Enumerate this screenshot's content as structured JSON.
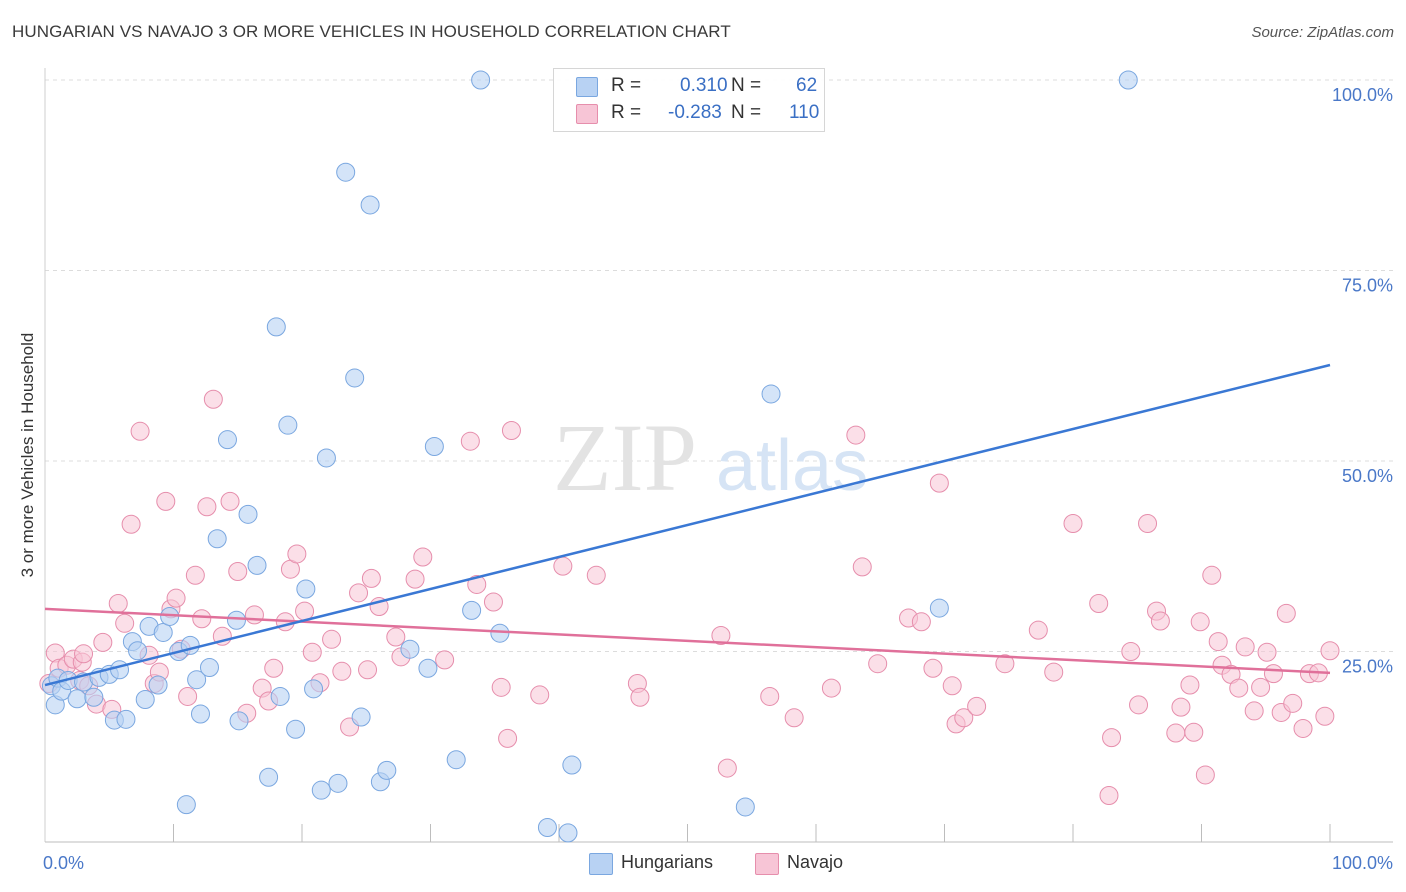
{
  "header": {
    "title": "HUNGARIAN VS NAVAJO 3 OR MORE VEHICLES IN HOUSEHOLD CORRELATION CHART",
    "source": "Source: ZipAtlas.com"
  },
  "watermark": {
    "zip": "ZIP",
    "atlas": "atlas"
  },
  "colors": {
    "blue_fill": "#b8d2f3",
    "blue_stroke": "#7aa7e0",
    "blue_line": "#3a78d4",
    "pink_fill": "#f7c5d6",
    "pink_stroke": "#e68eac",
    "pink_line": "#e0709a",
    "axis_text": "#4a78c8",
    "grid": "#dcdcdc"
  },
  "stats": {
    "hungarians": {
      "r_label": "R =",
      "r_value": "0.310",
      "n_label": "N =",
      "n_value": "62"
    },
    "navajo": {
      "r_label": "R =",
      "r_value": "-0.283",
      "n_label": "N =",
      "n_value": "110"
    }
  },
  "legend": {
    "hungarians": "Hungarians",
    "navajo": "Navajo"
  },
  "chart_data": {
    "type": "scatter",
    "title": "HUNGARIAN VS NAVAJO 3 OR MORE VEHICLES IN HOUSEHOLD CORRELATION CHART",
    "xlabel": "",
    "ylabel": "3 or more Vehicles in Household",
    "xlim": [
      0,
      100
    ],
    "ylim": [
      0,
      100
    ],
    "x_tick_labels": [
      "0.0%",
      "100.0%"
    ],
    "y_ticks": [
      25,
      50,
      75,
      100
    ],
    "y_tick_labels": [
      "25.0%",
      "50.0%",
      "75.0%",
      "100.0%"
    ],
    "legend_position": "bottom",
    "series": [
      {
        "name": "Hungarians",
        "r": 0.31,
        "n": 62,
        "trend": {
          "x": [
            0,
            100
          ],
          "y": [
            20.6,
            62.6
          ]
        },
        "points": [
          [
            0.5,
            20.5
          ],
          [
            0.8,
            18.0
          ],
          [
            1.0,
            21.5
          ],
          [
            1.3,
            19.8
          ],
          [
            1.8,
            21.2
          ],
          [
            2.5,
            18.8
          ],
          [
            3.0,
            21.0
          ],
          [
            3.8,
            19.0
          ],
          [
            4.2,
            21.6
          ],
          [
            5.0,
            22.0
          ],
          [
            5.4,
            16.0
          ],
          [
            5.8,
            22.6
          ],
          [
            6.3,
            16.1
          ],
          [
            6.8,
            26.3
          ],
          [
            7.2,
            25.1
          ],
          [
            7.8,
            18.7
          ],
          [
            8.1,
            28.3
          ],
          [
            8.8,
            20.6
          ],
          [
            9.2,
            27.5
          ],
          [
            9.7,
            29.6
          ],
          [
            10.4,
            25.0
          ],
          [
            11.0,
            4.9
          ],
          [
            11.3,
            25.8
          ],
          [
            11.8,
            21.3
          ],
          [
            12.1,
            16.8
          ],
          [
            12.8,
            22.9
          ],
          [
            13.4,
            39.8
          ],
          [
            14.2,
            52.8
          ],
          [
            14.9,
            29.1
          ],
          [
            15.1,
            15.9
          ],
          [
            15.8,
            43.0
          ],
          [
            16.5,
            36.3
          ],
          [
            17.4,
            8.5
          ],
          [
            18.0,
            67.6
          ],
          [
            18.3,
            19.1
          ],
          [
            18.9,
            54.7
          ],
          [
            19.5,
            14.8
          ],
          [
            20.3,
            33.2
          ],
          [
            20.9,
            20.1
          ],
          [
            21.5,
            6.8
          ],
          [
            21.9,
            50.4
          ],
          [
            22.8,
            7.7
          ],
          [
            23.4,
            87.9
          ],
          [
            24.1,
            60.9
          ],
          [
            24.6,
            16.4
          ],
          [
            25.3,
            83.6
          ],
          [
            26.1,
            7.9
          ],
          [
            26.6,
            9.4
          ],
          [
            28.4,
            25.3
          ],
          [
            29.8,
            22.8
          ],
          [
            30.3,
            51.9
          ],
          [
            32.0,
            10.8
          ],
          [
            33.2,
            30.4
          ],
          [
            33.9,
            100.0
          ],
          [
            35.4,
            27.4
          ],
          [
            39.1,
            1.9
          ],
          [
            40.7,
            1.2
          ],
          [
            41.0,
            10.1
          ],
          [
            54.5,
            4.6
          ],
          [
            56.5,
            58.8
          ],
          [
            69.6,
            30.7
          ],
          [
            84.3,
            100.0
          ]
        ]
      },
      {
        "name": "Navajo",
        "r": -0.283,
        "n": 110,
        "trend": {
          "x": [
            0,
            100
          ],
          "y": [
            30.6,
            22.2
          ]
        },
        "points": [
          [
            0.3,
            20.8
          ],
          [
            0.8,
            24.8
          ],
          [
            1.1,
            22.8
          ],
          [
            1.7,
            23.2
          ],
          [
            2.2,
            24.0
          ],
          [
            2.7,
            21.2
          ],
          [
            2.9,
            23.6
          ],
          [
            3.0,
            24.7
          ],
          [
            3.4,
            20.5
          ],
          [
            4.0,
            18.1
          ],
          [
            4.5,
            26.2
          ],
          [
            5.2,
            17.4
          ],
          [
            5.7,
            31.3
          ],
          [
            6.2,
            28.7
          ],
          [
            6.7,
            41.7
          ],
          [
            7.4,
            53.9
          ],
          [
            8.1,
            24.5
          ],
          [
            8.5,
            20.8
          ],
          [
            8.9,
            22.3
          ],
          [
            9.4,
            44.7
          ],
          [
            9.8,
            30.6
          ],
          [
            10.2,
            32.0
          ],
          [
            10.6,
            25.3
          ],
          [
            11.1,
            19.1
          ],
          [
            11.7,
            35.0
          ],
          [
            12.2,
            29.3
          ],
          [
            12.6,
            44.0
          ],
          [
            13.1,
            58.1
          ],
          [
            13.8,
            27.0
          ],
          [
            14.4,
            44.7
          ],
          [
            15.0,
            35.5
          ],
          [
            15.7,
            16.9
          ],
          [
            16.3,
            29.8
          ],
          [
            16.9,
            20.2
          ],
          [
            17.4,
            18.5
          ],
          [
            17.8,
            22.8
          ],
          [
            18.7,
            28.9
          ],
          [
            19.1,
            35.8
          ],
          [
            19.6,
            37.8
          ],
          [
            20.2,
            30.3
          ],
          [
            20.8,
            24.9
          ],
          [
            21.4,
            20.9
          ],
          [
            22.3,
            26.6
          ],
          [
            23.1,
            22.4
          ],
          [
            23.7,
            15.1
          ],
          [
            24.4,
            32.7
          ],
          [
            25.1,
            22.6
          ],
          [
            25.4,
            34.6
          ],
          [
            26.0,
            30.9
          ],
          [
            27.3,
            26.9
          ],
          [
            27.7,
            24.3
          ],
          [
            28.8,
            34.5
          ],
          [
            29.4,
            37.4
          ],
          [
            31.1,
            23.9
          ],
          [
            33.1,
            52.6
          ],
          [
            33.6,
            33.8
          ],
          [
            34.9,
            31.5
          ],
          [
            35.5,
            20.3
          ],
          [
            36.0,
            13.6
          ],
          [
            36.3,
            54.0
          ],
          [
            38.5,
            19.3
          ],
          [
            40.3,
            36.2
          ],
          [
            42.9,
            35.0
          ],
          [
            46.1,
            20.8
          ],
          [
            46.3,
            19.0
          ],
          [
            52.6,
            27.1
          ],
          [
            53.1,
            9.7
          ],
          [
            56.4,
            19.1
          ],
          [
            58.3,
            16.3
          ],
          [
            61.2,
            20.2
          ],
          [
            63.1,
            53.4
          ],
          [
            63.6,
            36.1
          ],
          [
            64.8,
            23.4
          ],
          [
            67.2,
            29.4
          ],
          [
            68.2,
            28.9
          ],
          [
            69.1,
            22.8
          ],
          [
            69.6,
            47.1
          ],
          [
            70.6,
            20.5
          ],
          [
            70.9,
            15.5
          ],
          [
            71.5,
            16.3
          ],
          [
            72.5,
            17.8
          ],
          [
            74.7,
            23.4
          ],
          [
            77.3,
            27.8
          ],
          [
            78.5,
            22.3
          ],
          [
            80.0,
            41.8
          ],
          [
            82.0,
            31.3
          ],
          [
            82.8,
            6.1
          ],
          [
            83.0,
            13.7
          ],
          [
            84.5,
            25.0
          ],
          [
            85.1,
            18.0
          ],
          [
            85.8,
            41.8
          ],
          [
            86.5,
            30.3
          ],
          [
            86.8,
            29.0
          ],
          [
            88.0,
            14.3
          ],
          [
            88.4,
            17.7
          ],
          [
            89.1,
            20.6
          ],
          [
            89.4,
            14.4
          ],
          [
            89.9,
            28.9
          ],
          [
            90.3,
            8.8
          ],
          [
            90.8,
            35.0
          ],
          [
            91.3,
            26.3
          ],
          [
            91.6,
            23.2
          ],
          [
            92.3,
            22.0
          ],
          [
            92.9,
            20.2
          ],
          [
            93.4,
            25.6
          ],
          [
            94.1,
            17.2
          ],
          [
            94.6,
            20.3
          ],
          [
            95.1,
            24.9
          ],
          [
            95.6,
            22.1
          ],
          [
            96.2,
            17.0
          ],
          [
            96.6,
            30.0
          ],
          [
            97.1,
            18.2
          ],
          [
            97.9,
            14.9
          ],
          [
            98.4,
            22.1
          ],
          [
            99.1,
            22.2
          ],
          [
            99.6,
            16.5
          ],
          [
            100.0,
            25.1
          ]
        ]
      }
    ]
  }
}
